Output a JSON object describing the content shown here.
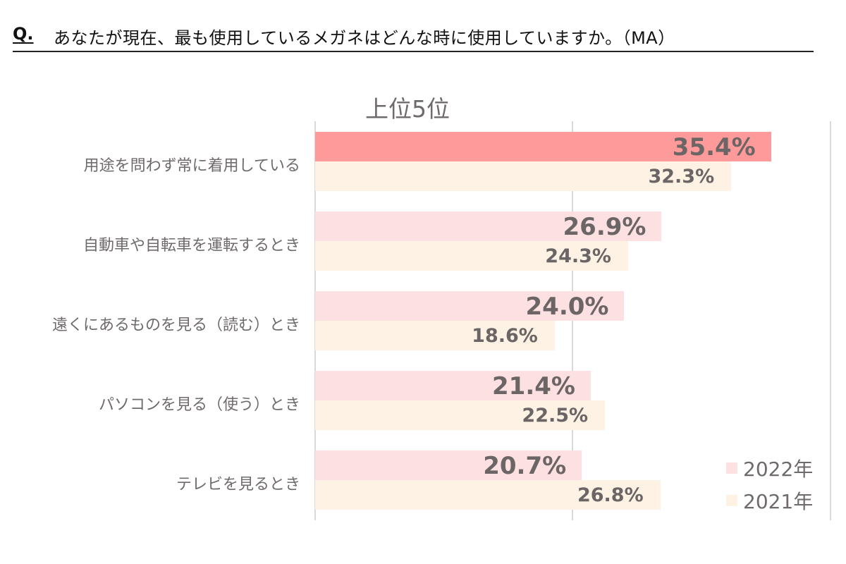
{
  "question": {
    "mark": "Q.",
    "text": "あなたが現在、最も使用しているメガネはどんな時に使用していますか。（MA）"
  },
  "subtitle": "上位5位",
  "colors": {
    "highlight_2022": "#ff9a9b",
    "bar_2022": "#fde0e1",
    "bar_2021": "#fdf2e3",
    "gridline": "#d9d9d9",
    "text": "#6b6566"
  },
  "legend": [
    {
      "label": "2022年",
      "color": "#fde0e1"
    },
    {
      "label": "2021年",
      "color": "#fdf2e3"
    }
  ],
  "rows": [
    {
      "label": "用途を問わず常に着用している",
      "v2022": "35.4%",
      "v2021": "32.3%"
    },
    {
      "label": "自動車や自転車を運転するとき",
      "v2022": "26.9%",
      "v2021": "24.3%"
    },
    {
      "label": "遠くにあるものを見る（読む）とき",
      "v2022": "24.0%",
      "v2021": "18.6%"
    },
    {
      "label": "パソコンを見る（使う）とき",
      "v2022": "21.4%",
      "v2021": "22.5%"
    },
    {
      "label": "テレビを見るとき",
      "v2022": "20.7%",
      "v2021": "26.8%"
    }
  ],
  "chart_data": {
    "type": "bar",
    "orientation": "horizontal",
    "title": "あなたが現在、最も使用しているメガネはどんな時に使用していますか。（MA）",
    "subtitle": "上位5位",
    "categories": [
      "用途を問わず常に着用している",
      "自動車や自転車を運転するとき",
      "遠くにあるものを見る（読む）とき",
      "パソコンを見る（使う）とき",
      "テレビを見るとき"
    ],
    "series": [
      {
        "name": "2022年",
        "values": [
          35.4,
          26.9,
          24.0,
          21.4,
          20.7
        ],
        "color": "#fde0e1"
      },
      {
        "name": "2021年",
        "values": [
          32.3,
          24.3,
          18.6,
          22.5,
          26.8
        ],
        "color": "#fdf2e3"
      }
    ],
    "xlabel": "",
    "ylabel": "",
    "xlim": [
      0,
      40
    ],
    "gridlines": [
      0,
      20,
      40
    ],
    "grid": true,
    "legend_position": "bottom-right",
    "unit": "%"
  }
}
